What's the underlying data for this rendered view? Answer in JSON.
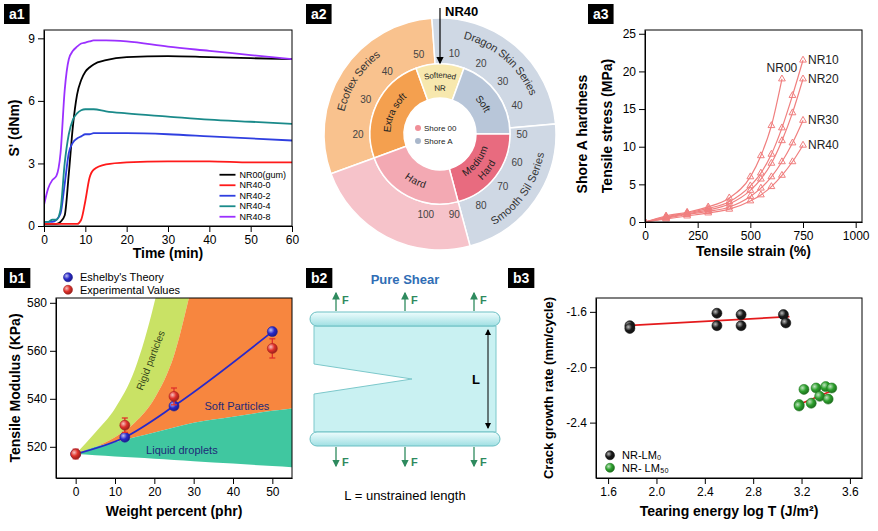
{
  "chart_data": [
    {
      "panel_label": "a1",
      "type": "line",
      "x_label": "Time (min)",
      "y_label": "S' (dNm)",
      "x": [
        0,
        1,
        2,
        3,
        4,
        5,
        6,
        7,
        8,
        9,
        10,
        11,
        12,
        15,
        20,
        30,
        40,
        50,
        60
      ],
      "xlim": [
        0,
        60
      ],
      "xticks": [
        0,
        10,
        20,
        30,
        40,
        50,
        60
      ],
      "ylim": [
        0,
        9.4
      ],
      "yticks": [
        0,
        3,
        6,
        9
      ],
      "legend": "bottom-right",
      "series": [
        {
          "name": "NR00(gum)",
          "color": "#000000",
          "values": [
            0.1,
            0.1,
            0.1,
            0.1,
            0.2,
            0.5,
            2.5,
            4.8,
            6.3,
            7.0,
            7.4,
            7.6,
            7.75,
            7.95,
            8.1,
            8.15,
            8.1,
            8.05,
            8.0
          ]
        },
        {
          "name": "NR40-0",
          "color": "#ff1a1a",
          "values": [
            0.1,
            0.1,
            0.1,
            0.1,
            0.1,
            0.1,
            0.1,
            0.1,
            0.1,
            0.3,
            1.2,
            2.3,
            2.7,
            2.95,
            3.05,
            3.1,
            3.1,
            3.05,
            3.05
          ]
        },
        {
          "name": "NR40-2",
          "color": "#2f3fe0",
          "values": [
            0.2,
            0.2,
            0.2,
            0.3,
            0.6,
            2.0,
            3.5,
            4.0,
            4.2,
            4.3,
            4.4,
            4.4,
            4.45,
            4.45,
            4.45,
            4.4,
            4.3,
            4.2,
            4.1
          ]
        },
        {
          "name": "NR40-4",
          "color": "#1a8a8a",
          "values": [
            0.2,
            0.2,
            0.3,
            0.3,
            0.8,
            3.0,
            4.4,
            5.1,
            5.4,
            5.55,
            5.6,
            5.6,
            5.6,
            5.5,
            5.4,
            5.25,
            5.1,
            5.0,
            4.9
          ]
        },
        {
          "name": "NR40-8",
          "color": "#9b30ff",
          "values": [
            1.0,
            1.8,
            2.2,
            2.4,
            3.5,
            6.5,
            8.0,
            8.4,
            8.6,
            8.75,
            8.8,
            8.85,
            8.9,
            8.9,
            8.85,
            8.6,
            8.4,
            8.2,
            8.0
          ]
        }
      ]
    },
    {
      "panel_label": "a3",
      "type": "line",
      "marker": "triangle",
      "color": "#f07f7f",
      "x_label": "Tensile strain (%)",
      "y_label": "Tensile stress (MPa)",
      "x": [
        0,
        100,
        200,
        300,
        400,
        500,
        550,
        600,
        650,
        700,
        750
      ],
      "xlim": [
        0,
        1030
      ],
      "xticks": [
        0,
        250,
        500,
        750,
        1000
      ],
      "ylim": [
        0,
        25.5
      ],
      "yticks": [
        0,
        5,
        10,
        15,
        20,
        25
      ],
      "legend": "line-end",
      "series": [
        {
          "name": "NR00",
          "values": [
            0,
            0.8,
            1.3,
            2.0,
            3.2,
            6.0,
            8.8,
            12.8,
            19.0,
            null,
            null
          ]
        },
        {
          "name": "NR10",
          "values": [
            0,
            0.7,
            1.2,
            1.8,
            2.7,
            4.8,
            6.5,
            9.0,
            12.5,
            16.8,
            21.5
          ]
        },
        {
          "name": "NR20",
          "values": [
            0,
            0.6,
            1.1,
            1.6,
            2.4,
            4.2,
            5.7,
            7.8,
            10.8,
            14.5,
            19.0
          ]
        },
        {
          "name": "NR30",
          "values": [
            0,
            0.5,
            1.0,
            1.4,
            2.0,
            3.4,
            4.5,
            6.0,
            8.0,
            10.5,
            13.5
          ]
        },
        {
          "name": "NR40",
          "values": [
            0,
            0.4,
            0.8,
            1.2,
            1.7,
            2.8,
            3.6,
            4.7,
            6.2,
            8.0,
            10.2
          ]
        }
      ]
    },
    {
      "panel_label": "b1",
      "type": "scatter",
      "x_label": "Weight percent (phr)",
      "y_label": "Tensile Modulus (KPa)",
      "xlim": [
        -5,
        55
      ],
      "xticks": [
        0,
        10,
        20,
        30,
        40,
        50
      ],
      "ylim": [
        507,
        582
      ],
      "yticks": [
        520,
        540,
        560,
        580
      ],
      "legend": "top",
      "regions": [
        {
          "name": "Rigid particles",
          "color": "#c9e265",
          "x": [
            0,
            5,
            10,
            15,
            20,
            25,
            30,
            40,
            50,
            55
          ],
          "lower": [
            517,
            520,
            524,
            530,
            540,
            558,
            590,
            650,
            710,
            740
          ],
          "upper": [
            517,
            526,
            536,
            552,
            580,
            620,
            660,
            720,
            780,
            810
          ]
        },
        {
          "name": "Soft Particles",
          "color": "#f7863f",
          "x": [
            0,
            5,
            10,
            15,
            20,
            25,
            30,
            40,
            50,
            55
          ],
          "lower": [
            517,
            520,
            522,
            524,
            526,
            528,
            530,
            532.5,
            535,
            536
          ],
          "upper": [
            517,
            520,
            524,
            530,
            540,
            558,
            590,
            650,
            710,
            740
          ]
        },
        {
          "name": "Liquid droplets",
          "color": "#40c7a0",
          "x": [
            0,
            5,
            10,
            15,
            20,
            25,
            30,
            40,
            50,
            55
          ],
          "lower": [
            517,
            516.5,
            516,
            515.5,
            515,
            514.5,
            514,
            513,
            512,
            511.5
          ],
          "upper": [
            517,
            520,
            522,
            524,
            526,
            528,
            530,
            532.5,
            535,
            536
          ]
        }
      ],
      "series": [
        {
          "name": "Eshelby's Theory",
          "type": "line",
          "marker": "circle",
          "color": "#2929c9",
          "x": [
            0,
            12.5,
            25,
            50
          ],
          "values": [
            517,
            524,
            537,
            568
          ]
        },
        {
          "name": "Experimental Values",
          "type": "scatter",
          "marker": "circle",
          "color": "#e0302a",
          "x": [
            0,
            12.5,
            25,
            50
          ],
          "values": [
            517,
            529,
            541,
            561
          ],
          "errors": [
            2,
            3,
            3.5,
            4
          ]
        }
      ]
    },
    {
      "panel_label": "b3",
      "type": "scatter",
      "x_label": "Tearing energy log T (J/m²)",
      "y_label": "Crack growth rate (mm/cycle)",
      "xlim": [
        1.5,
        3.7
      ],
      "xticks": [
        1.6,
        {
          "value": 2,
          "label": "2.0"
        },
        2.4,
        2.8,
        3.2,
        3.6
      ],
      "ylim": [
        -2.8,
        -1.5
      ],
      "yticks": [
        -2.4,
        {
          "value": -2,
          "label": "-2.0"
        },
        -1.6
      ],
      "legend": "bottom-left",
      "series": [
        {
          "name": "NR-LM₀",
          "type": "scatter",
          "marker": "circle",
          "color": "#1a1a1a",
          "x": [
            1.78,
            1.78,
            2.5,
            2.5,
            2.7,
            2.7,
            3.05,
            3.07
          ],
          "values": [
            -1.7,
            -1.72,
            -1.61,
            -1.7,
            -1.62,
            -1.7,
            -1.62,
            -1.68
          ]
        },
        {
          "name": "NR- LM₅₀",
          "type": "scatter",
          "marker": "circle",
          "color": "#2ca02c",
          "x": [
            3.18,
            3.18,
            3.22,
            3.28,
            3.32,
            3.35,
            3.4,
            3.42,
            3.45
          ],
          "values": [
            -2.27,
            -2.28,
            -2.16,
            -2.26,
            -2.15,
            -2.21,
            -2.14,
            -2.23,
            -2.15
          ]
        },
        {
          "type": "line",
          "color": "#e41a1c",
          "x": [
            1.75,
            3.1
          ],
          "values": [
            -1.7,
            -1.635
          ]
        },
        {
          "type": "line",
          "color": "#e41a1c",
          "x": [
            3.15,
            3.45
          ],
          "values": [
            -2.28,
            -2.17
          ]
        }
      ]
    }
  ],
  "diagrams": {
    "a2": {
      "panel_label": "a2",
      "pointer_label": "NR40",
      "axis_title": "Shore A hardness",
      "outer_segments": [
        {
          "label": "Ecoflex Series",
          "color": "#f9c28e"
        },
        {
          "label": "Dragon Skin Series",
          "color": "#cfd8e4"
        },
        {
          "label": "Smooth Sil Series",
          "color": "#cfd8e4"
        }
      ],
      "classes": [
        {
          "label": "Extra soft",
          "color": "#f4a04f"
        },
        {
          "label": "Softened NR",
          "color": "#f7e8ae"
        },
        {
          "label": "Soft",
          "color": "#b8c6d9"
        },
        {
          "label": "Medium Hard",
          "color": "#e86b7f"
        },
        {
          "label": "Hard",
          "color": "#f3a9b3"
        }
      ],
      "shore_a_ticks": [
        10,
        20,
        30,
        40,
        50,
        60,
        70,
        80,
        90,
        100
      ],
      "shore_00_ticks": [
        20,
        30,
        40,
        50
      ],
      "scales": [
        {
          "label": "Shore 00",
          "color": "#f08f98"
        },
        {
          "label": "Shore A",
          "color": "#a9b7cb"
        }
      ]
    },
    "b2": {
      "panel_label": "b2",
      "title": "Pure Shear",
      "force_label": "F",
      "length_label": "L",
      "caption": "L = unstrained length"
    }
  }
}
